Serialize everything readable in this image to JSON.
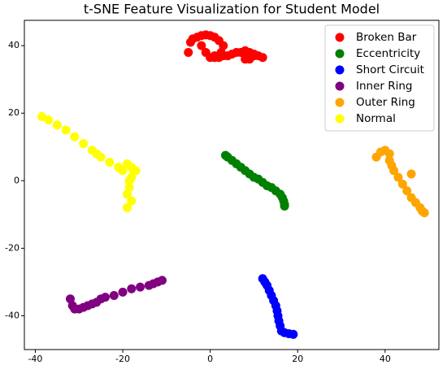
{
  "chart_data": {
    "type": "scatter",
    "title": "t-SNE Feature Visualization for Student Model",
    "xlim": [
      -42.5,
      52.3
    ],
    "ylim": [
      -50,
      47.5
    ],
    "xticks": [
      -40,
      -20,
      0,
      20,
      40
    ],
    "yticks": [
      -40,
      -20,
      0,
      20,
      40
    ],
    "legend": "upper right",
    "series": [
      {
        "name": "Broken Bar",
        "color": "red",
        "x": [
          -5,
          -4.5,
          -4,
          -3,
          -2,
          -1,
          0,
          1,
          2,
          3,
          2.5,
          1,
          -2,
          -1,
          0,
          1,
          2,
          3,
          4,
          5,
          6,
          7,
          8,
          9,
          10,
          11,
          12,
          8,
          9,
          10
        ],
        "values": [
          38,
          41,
          42,
          42.5,
          43,
          43.2,
          43,
          42.5,
          41.5,
          40,
          38,
          37,
          40,
          38,
          36.5,
          36.5,
          36.5,
          37,
          37,
          37.5,
          38,
          38,
          38.5,
          38,
          37.5,
          37,
          36.5,
          36,
          36,
          37
        ]
      },
      {
        "name": "Eccentricity",
        "color": "green",
        "x": [
          3.5,
          4,
          5,
          6,
          7,
          8,
          9,
          10,
          11,
          12,
          13,
          14,
          15,
          16,
          16.5,
          16.8,
          17,
          17
        ],
        "values": [
          7.5,
          7,
          6,
          5,
          4,
          3,
          2,
          1,
          0.5,
          -0.5,
          -1.5,
          -2,
          -3,
          -4,
          -5,
          -6,
          -7,
          -7.5
        ]
      },
      {
        "name": "Short Circuit",
        "color": "blue",
        "x": [
          12,
          12.5,
          13,
          13.5,
          14,
          14.5,
          15,
          15.3,
          15.5,
          15.7,
          16,
          16.3,
          17,
          18,
          19
        ],
        "values": [
          -29,
          -30,
          -31,
          -32.5,
          -34,
          -35.5,
          -37,
          -38.5,
          -40,
          -41.5,
          -43,
          -44.5,
          -45,
          -45.3,
          -45.5
        ]
      },
      {
        "name": "Inner Ring",
        "color": "purple",
        "x": [
          -32,
          -31.5,
          -31,
          -30,
          -29,
          -28,
          -27,
          -26,
          -25,
          -24,
          -22,
          -20,
          -18,
          -16,
          -14,
          -13,
          -12,
          -11
        ],
        "values": [
          -35,
          -37,
          -38,
          -38,
          -37.5,
          -37,
          -36.5,
          -36,
          -35,
          -34.5,
          -34,
          -33,
          -32,
          -31.5,
          -31,
          -30.5,
          -30,
          -29.5
        ]
      },
      {
        "name": "Outer Ring",
        "color": "orange",
        "x": [
          38,
          39,
          40,
          41,
          41,
          41.5,
          42,
          43,
          44,
          45,
          46,
          47,
          48,
          48.5,
          49,
          46
        ],
        "values": [
          7,
          8.5,
          9,
          8,
          6,
          4.5,
          3,
          1,
          -1,
          -3,
          -5,
          -6.5,
          -8,
          -9,
          -9.5,
          2
        ]
      },
      {
        "name": "Normal",
        "color": "yellow",
        "x": [
          -38.5,
          -37,
          -35,
          -33,
          -31,
          -29,
          -27,
          -26,
          -25,
          -23,
          -21,
          -20,
          -19,
          -18,
          -17.5,
          -18,
          -18.5,
          -18.5,
          -19,
          -19,
          -18,
          -17
        ],
        "values": [
          19,
          18,
          16.5,
          15,
          13,
          11,
          9,
          8,
          7,
          5.5,
          4,
          3,
          5,
          4,
          3,
          1,
          0,
          -2,
          -4,
          -8,
          -6,
          3
        ]
      }
    ]
  }
}
